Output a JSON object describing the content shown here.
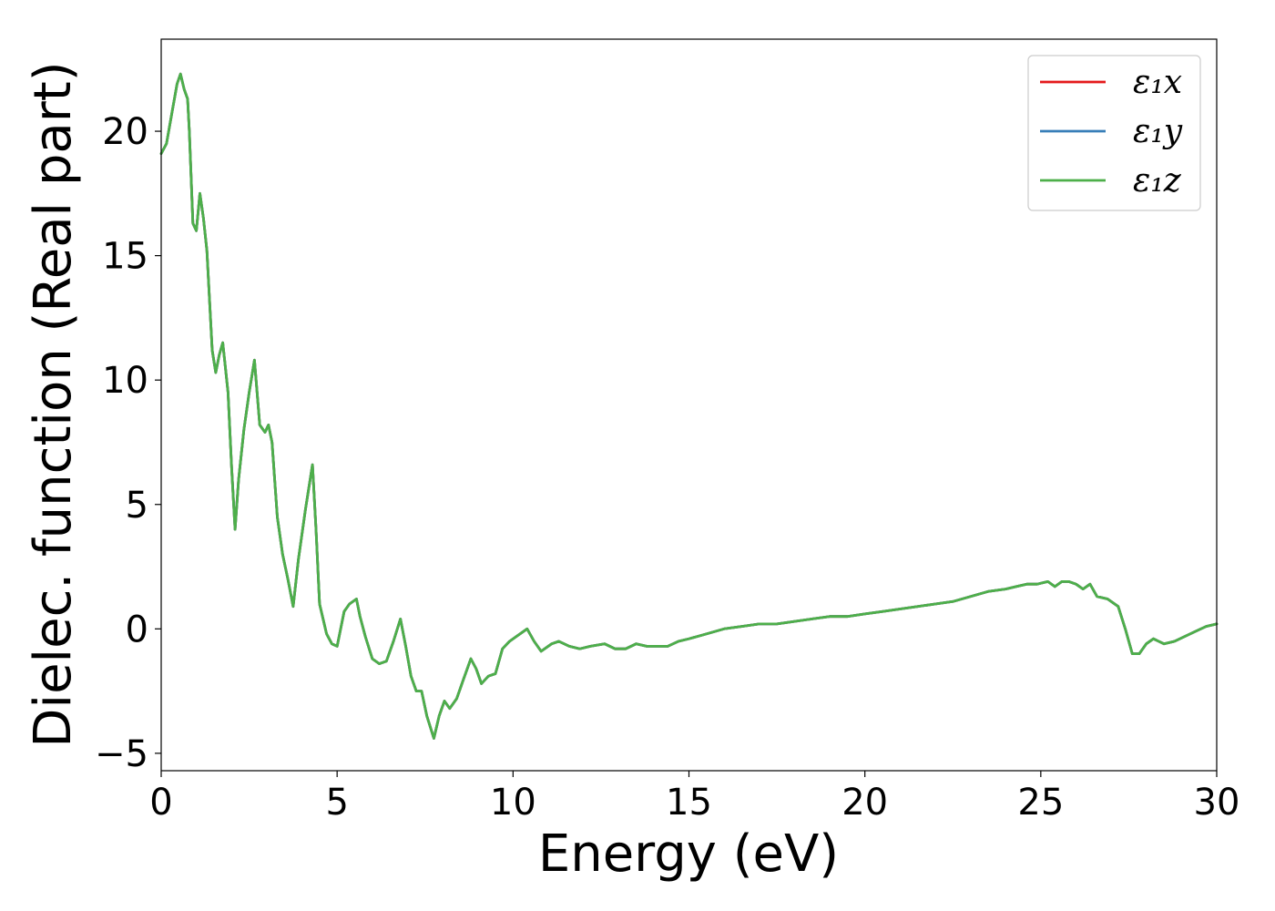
{
  "chart_data": {
    "type": "line",
    "xlabel": "Energy (eV)",
    "ylabel": "Dielec. function (Real part)",
    "xlim": [
      0,
      30
    ],
    "ylim": [
      -5.7,
      23.7
    ],
    "xticks": [
      0,
      5,
      10,
      15,
      20,
      25,
      30
    ],
    "xtick_labels": [
      "0",
      "5",
      "10",
      "15",
      "20",
      "25",
      "30"
    ],
    "yticks": [
      -5,
      0,
      5,
      10,
      15,
      20
    ],
    "ytick_labels": [
      "−5",
      "0",
      "5",
      "10",
      "15",
      "20"
    ],
    "grid": false,
    "legend_position": "top-right",
    "series": [
      {
        "name": "ε₁x",
        "color": "#e41a1c",
        "x": [
          0,
          0.15,
          0.3,
          0.45,
          0.55,
          0.65,
          0.75,
          0.8,
          0.9,
          1.0,
          1.1,
          1.2,
          1.3,
          1.45,
          1.55,
          1.65,
          1.75,
          1.9,
          2.0,
          2.1,
          2.2,
          2.35,
          2.5,
          2.65,
          2.8,
          2.95,
          3.05,
          3.15,
          3.3,
          3.45,
          3.6,
          3.75,
          3.9,
          4.1,
          4.3,
          4.4,
          4.5,
          4.7,
          4.85,
          5.0,
          5.2,
          5.35,
          5.55,
          5.65,
          5.8,
          6.0,
          6.2,
          6.4,
          6.6,
          6.8,
          6.95,
          7.1,
          7.25,
          7.4,
          7.55,
          7.75,
          7.9,
          8.05,
          8.2,
          8.4,
          8.6,
          8.8,
          8.95,
          9.1,
          9.3,
          9.5,
          9.7,
          9.9,
          10.1,
          10.4,
          10.6,
          10.8,
          11.1,
          11.3,
          11.6,
          11.9,
          12.2,
          12.6,
          12.9,
          13.2,
          13.5,
          13.8,
          14.1,
          14.4,
          14.7,
          15,
          15.5,
          16,
          16.5,
          17,
          17.5,
          18,
          18.5,
          19,
          19.5,
          20,
          20.5,
          21,
          21.5,
          22,
          22.5,
          23,
          23.5,
          24,
          24.3,
          24.6,
          24.9,
          25.2,
          25.4,
          25.6,
          25.8,
          26.0,
          26.2,
          26.4,
          26.6,
          26.9,
          27.2,
          27.4,
          27.6,
          27.8,
          28.0,
          28.2,
          28.5,
          28.8,
          29.1,
          29.4,
          29.7,
          30
        ],
        "y": [
          19.1,
          19.5,
          20.7,
          21.9,
          22.3,
          21.7,
          21.3,
          20.0,
          16.3,
          16.0,
          17.5,
          16.5,
          15.2,
          11.2,
          10.3,
          11.0,
          11.5,
          9.5,
          6.5,
          4.0,
          6.0,
          8.0,
          9.5,
          10.8,
          8.2,
          7.9,
          8.2,
          7.5,
          4.5,
          3.0,
          2.0,
          0.9,
          2.8,
          4.8,
          6.6,
          4.0,
          1.0,
          -0.2,
          -0.6,
          -0.7,
          0.7,
          1.0,
          1.2,
          0.5,
          -0.3,
          -1.2,
          -1.4,
          -1.3,
          -0.5,
          0.4,
          -0.7,
          -1.9,
          -2.5,
          -2.5,
          -3.5,
          -4.4,
          -3.5,
          -2.9,
          -3.2,
          -2.8,
          -2.0,
          -1.2,
          -1.6,
          -2.2,
          -1.9,
          -1.8,
          -0.8,
          -0.5,
          -0.3,
          0.0,
          -0.5,
          -0.9,
          -0.6,
          -0.5,
          -0.7,
          -0.8,
          -0.7,
          -0.6,
          -0.8,
          -0.8,
          -0.6,
          -0.7,
          -0.7,
          -0.7,
          -0.5,
          -0.4,
          -0.2,
          0.0,
          0.1,
          0.2,
          0.2,
          0.3,
          0.4,
          0.5,
          0.5,
          0.6,
          0.7,
          0.8,
          0.9,
          1.0,
          1.1,
          1.3,
          1.5,
          1.6,
          1.7,
          1.8,
          1.8,
          1.9,
          1.7,
          1.9,
          1.9,
          1.8,
          1.6,
          1.8,
          1.3,
          1.2,
          0.9,
          0.0,
          -1.0,
          -1.0,
          -0.6,
          -0.4,
          -0.6,
          -0.5,
          -0.3,
          -0.1,
          0.1,
          0.2
        ]
      },
      {
        "name": "ε₁y",
        "color": "#377eb8",
        "same_as": "ε₁x"
      },
      {
        "name": "ε₁z",
        "color": "#4daf4a",
        "same_as": "ε₁x"
      }
    ]
  }
}
